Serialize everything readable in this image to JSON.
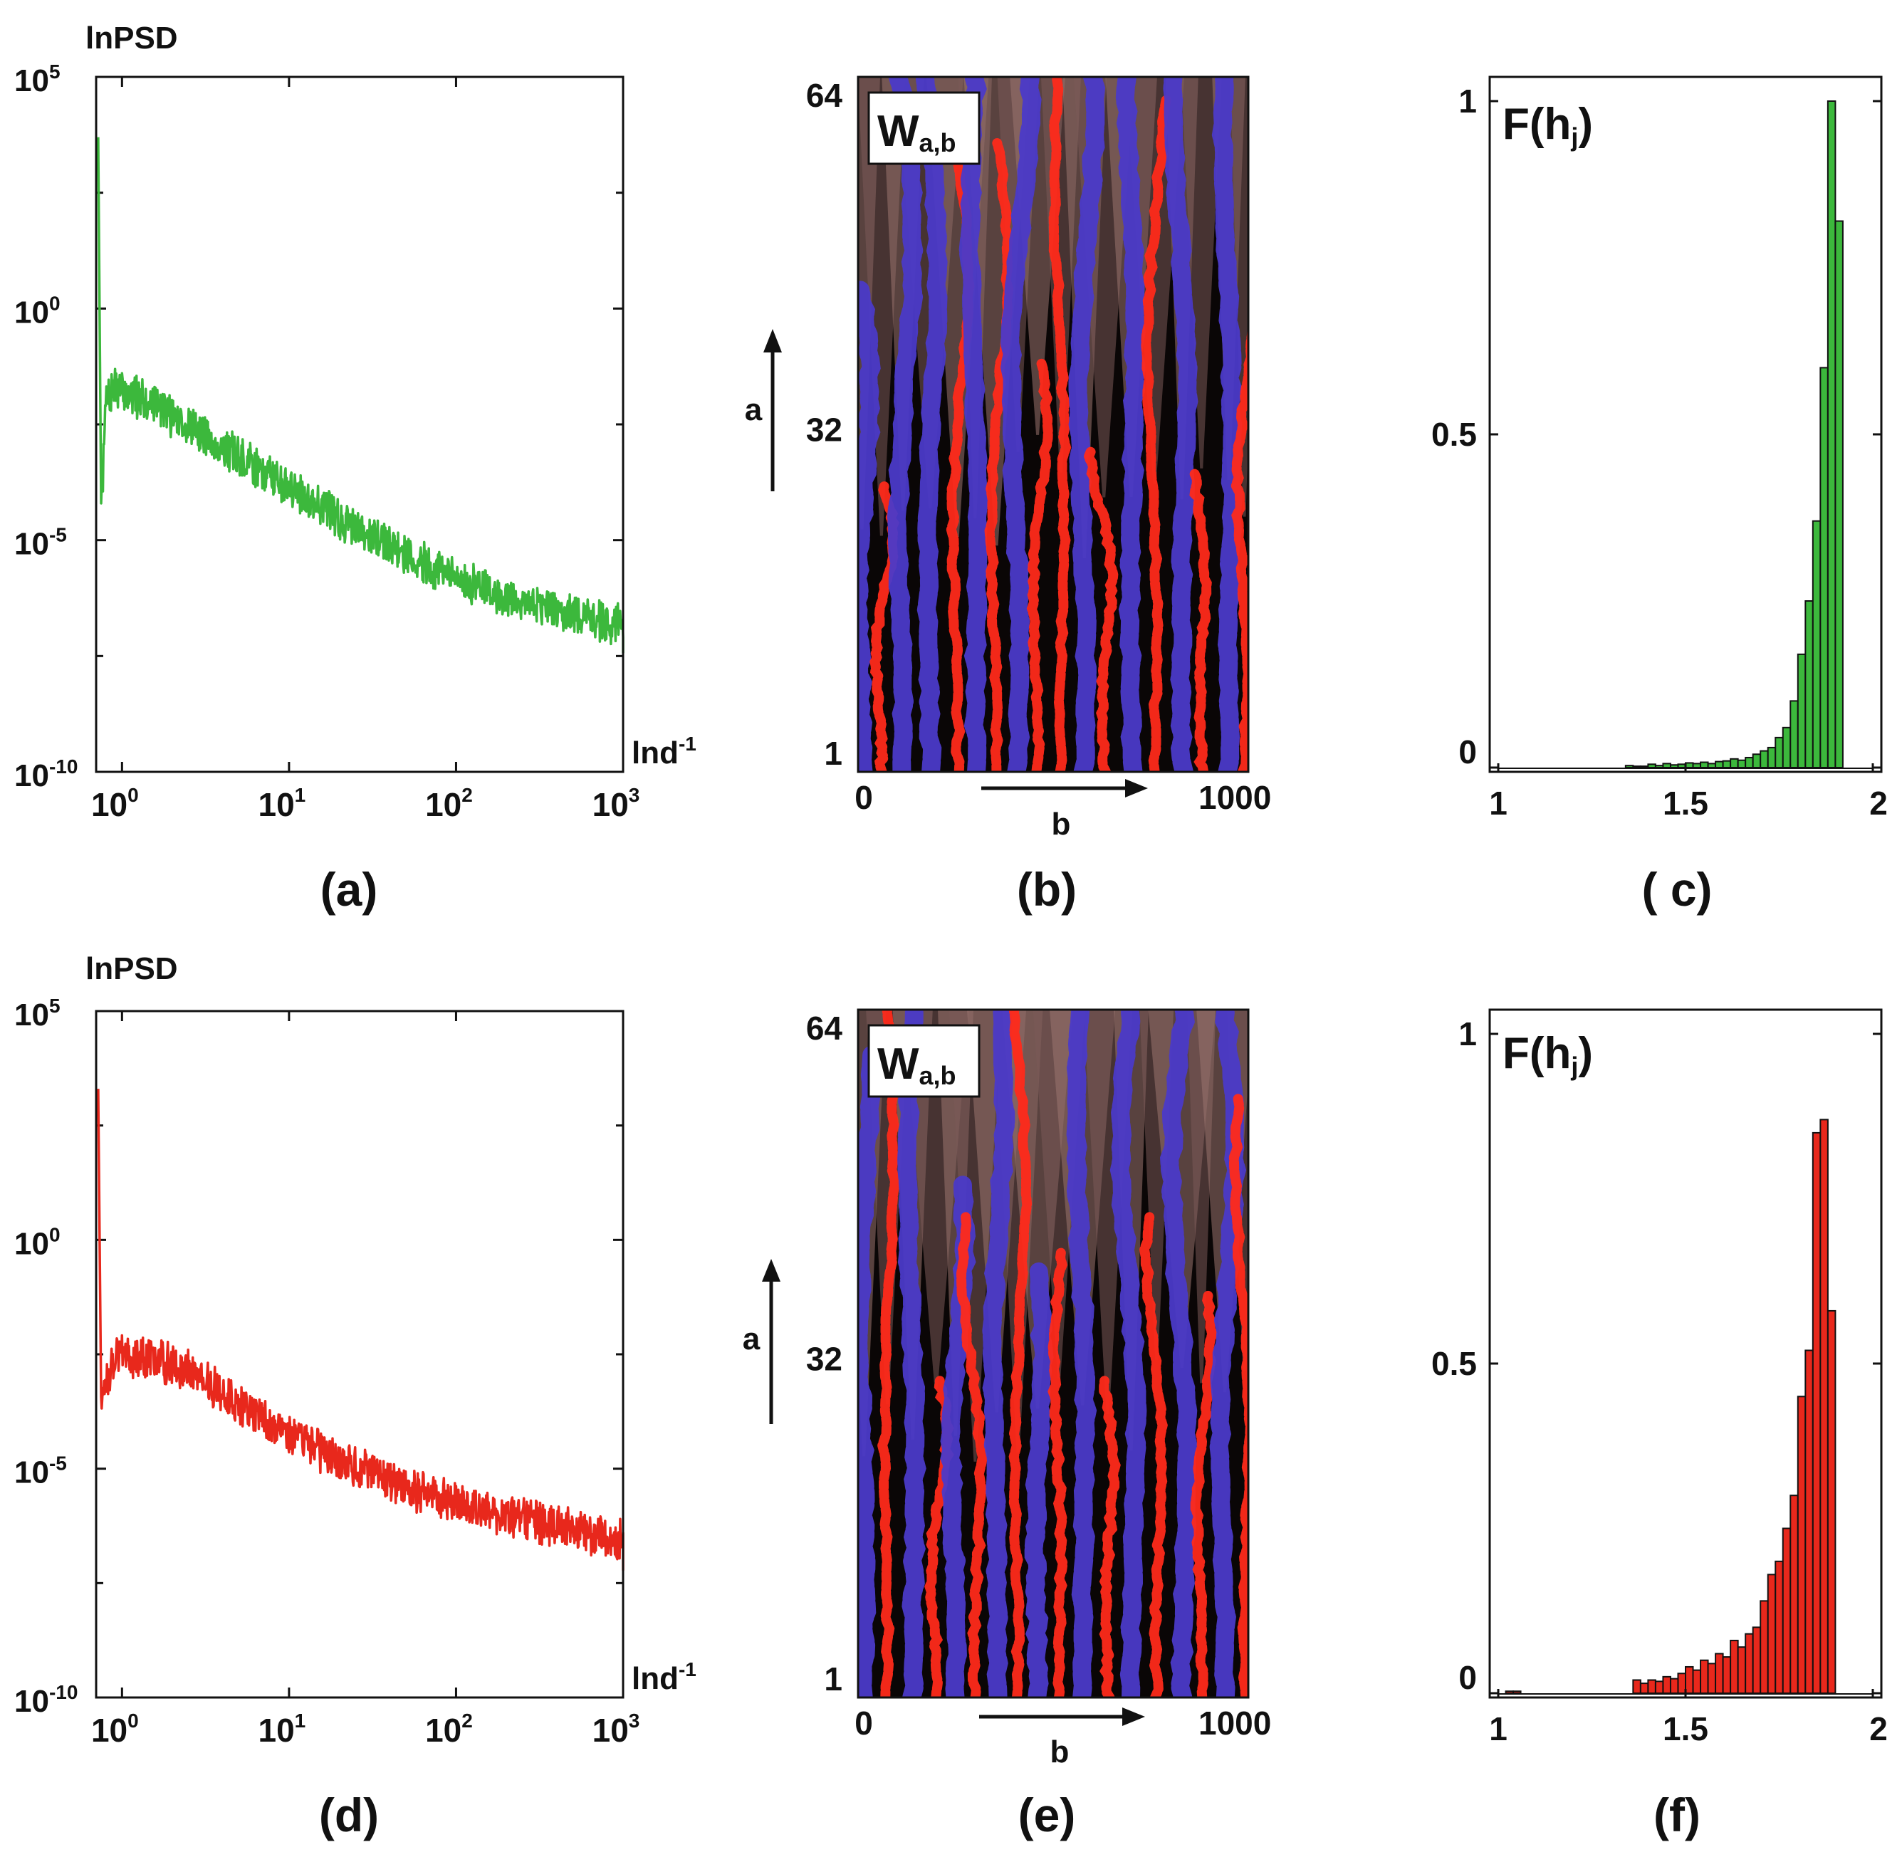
{
  "figure": {
    "panels": {
      "a": {
        "caption": "(a)",
        "title": "lnPSD",
        "xlabel": "lnd-1",
        "xlabel_main": "lnd",
        "xlabel_sup": "-1"
      },
      "b": {
        "caption": "(b)",
        "title": "W",
        "title_sub": "a,b",
        "xlabel": "b",
        "ylabel": "a"
      },
      "c": {
        "caption": "( c)",
        "title": "F(h",
        "title_sub": "j",
        "title_end": ")"
      },
      "d": {
        "caption": "(d)",
        "title": "lnPSD",
        "xlabel": "lnd-1",
        "xlabel_main": "lnd",
        "xlabel_sup": "-1"
      },
      "e": {
        "caption": "(e)",
        "title": "W",
        "title_sub": "a,b",
        "xlabel": "b",
        "ylabel": "a"
      },
      "f": {
        "caption": "(f)",
        "title": "F(h",
        "title_sub": "j",
        "title_end": ")"
      }
    },
    "colors": {
      "green": "#3cb83c",
      "red": "#e8281c",
      "blue": "#4b3ac8",
      "marker_red": "#ff2a1a"
    }
  },
  "chart_data": [
    {
      "id": "a",
      "type": "line",
      "xscale": "log",
      "yscale": "log",
      "title": "lnPSD",
      "xlabel": "lnd-1",
      "ylabel": "",
      "xlim": [
        0.7,
        1000
      ],
      "ylim": [
        1e-10,
        100000.0
      ],
      "xticks": [
        {
          "base": "10",
          "exp": "0"
        },
        {
          "base": "10",
          "exp": "1"
        },
        {
          "base": "10",
          "exp": "2"
        },
        {
          "base": "10",
          "exp": "3"
        }
      ],
      "yticks": [
        {
          "base": "10",
          "exp": "5",
          "value": 100000.0
        },
        {
          "base": "10",
          "exp": "0",
          "value": 1
        },
        {
          "base": "10",
          "exp": "-5",
          "value": 1e-05
        },
        {
          "base": "10",
          "exp": "-10",
          "value": 1e-10
        }
      ],
      "color": "#3cb83c",
      "seed": 7,
      "x": [
        0.72,
        0.75,
        0.8,
        0.9,
        1,
        1.5,
        2,
        3,
        5,
        10,
        20,
        50,
        100,
        200,
        500,
        1000
      ],
      "y": [
        5000.0,
        3e-05,
        0.01,
        0.02,
        0.015,
        0.01,
        0.005,
        0.002,
        0.0006,
        0.00015,
        3e-05,
        5e-06,
        1.5e-06,
        6e-07,
        2.5e-07,
        1.5e-07
      ]
    },
    {
      "id": "b",
      "type": "heatmap",
      "title": "Wa,b",
      "xlabel": "b",
      "ylabel": "a",
      "xlim": [
        0,
        1000
      ],
      "ylim": [
        1,
        64
      ],
      "xticks": [
        "0",
        "1000"
      ],
      "yticks": [
        "1",
        "32",
        "64"
      ],
      "markers": "wavelet modulus maxima lines (red and blue)",
      "ridges": [
        {
          "b": 10,
          "a": [
            1,
            45
          ],
          "c": "blue"
        },
        {
          "b": 60,
          "a": [
            1,
            27
          ],
          "c": "red"
        },
        {
          "b": 115,
          "a": [
            1,
            64
          ],
          "c": "blue"
        },
        {
          "b": 185,
          "a": [
            1,
            64
          ],
          "c": "blue"
        },
        {
          "b": 255,
          "a": [
            1,
            56
          ],
          "c": "red"
        },
        {
          "b": 300,
          "a": [
            1,
            64
          ],
          "c": "blue"
        },
        {
          "b": 355,
          "a": [
            1,
            58
          ],
          "c": "red"
        },
        {
          "b": 410,
          "a": [
            1,
            64
          ],
          "c": "blue"
        },
        {
          "b": 460,
          "a": [
            1,
            38
          ],
          "c": "red"
        },
        {
          "b": 520,
          "a": [
            1,
            64
          ],
          "c": "red"
        },
        {
          "b": 580,
          "a": [
            1,
            64
          ],
          "c": "blue"
        },
        {
          "b": 630,
          "a": [
            1,
            30
          ],
          "c": "red"
        },
        {
          "b": 700,
          "a": [
            1,
            64
          ],
          "c": "blue"
        },
        {
          "b": 760,
          "a": [
            1,
            62
          ],
          "c": "red"
        },
        {
          "b": 830,
          "a": [
            1,
            64
          ],
          "c": "blue"
        },
        {
          "b": 880,
          "a": [
            1,
            28
          ],
          "c": "red"
        },
        {
          "b": 950,
          "a": [
            1,
            64
          ],
          "c": "blue"
        },
        {
          "b": 990,
          "a": [
            1,
            42
          ],
          "c": "red"
        }
      ]
    },
    {
      "id": "c",
      "type": "bar",
      "title": "F(hj)",
      "xlim": [
        1,
        2
      ],
      "ylim": [
        0,
        1
      ],
      "xticks": [
        "1",
        "1.5",
        "2"
      ],
      "yticks": [
        {
          "label": "0",
          "value": 0
        },
        {
          "label": "0.5",
          "value": 0.5
        },
        {
          "label": "1",
          "value": 1
        }
      ],
      "bin_start": 1.0,
      "bin_width": 0.02,
      "values": [
        0,
        0,
        0,
        0,
        0,
        0,
        0,
        0,
        0,
        0,
        0,
        0,
        0,
        0,
        0,
        0,
        0,
        0.003,
        0.002,
        0.002,
        0.005,
        0.003,
        0.006,
        0.004,
        0.005,
        0.007,
        0.006,
        0.008,
        0.006,
        0.009,
        0.01,
        0.013,
        0.011,
        0.015,
        0.02,
        0.025,
        0.03,
        0.045,
        0.06,
        0.1,
        0.17,
        0.25,
        0.37,
        0.6,
        1.0,
        0.82,
        0.0,
        0.0,
        0.0,
        0.0
      ],
      "color": "#3cb83c"
    },
    {
      "id": "d",
      "type": "line",
      "xscale": "log",
      "yscale": "log",
      "title": "lnPSD",
      "xlabel": "lnd-1",
      "ylabel": "",
      "xlim": [
        0.7,
        1000
      ],
      "ylim": [
        1e-10,
        100000.0
      ],
      "xticks": [
        {
          "base": "10",
          "exp": "0"
        },
        {
          "base": "10",
          "exp": "1"
        },
        {
          "base": "10",
          "exp": "2"
        },
        {
          "base": "10",
          "exp": "3"
        }
      ],
      "yticks": [
        {
          "base": "10",
          "exp": "5",
          "value": 100000.0
        },
        {
          "base": "10",
          "exp": "0",
          "value": 1
        },
        {
          "base": "10",
          "exp": "-5",
          "value": 1e-05
        },
        {
          "base": "10",
          "exp": "-10",
          "value": 1e-10
        }
      ],
      "color": "#e8281c",
      "seed": 13,
      "x": [
        0.72,
        0.75,
        0.8,
        0.9,
        1,
        1.5,
        2,
        3,
        5,
        10,
        20,
        50,
        100,
        200,
        500,
        1000
      ],
      "y": [
        2000.0,
        0.0004,
        0.0008,
        0.003,
        0.003,
        0.0025,
        0.002,
        0.001,
        0.00025,
        6e-05,
        1.5e-05,
        4e-06,
        1.8e-06,
        9e-07,
        5e-07,
        2.5e-07
      ]
    },
    {
      "id": "e",
      "type": "heatmap",
      "title": "Wa,b",
      "xlabel": "b",
      "ylabel": "a",
      "xlim": [
        0,
        1000
      ],
      "ylim": [
        1,
        64
      ],
      "xticks": [
        "0",
        "1000"
      ],
      "yticks": [
        "1",
        "32",
        "64"
      ],
      "markers": "wavelet modulus maxima lines (red and blue)",
      "ridges": [
        {
          "b": 15,
          "a": [
            1,
            60
          ],
          "c": "blue"
        },
        {
          "b": 75,
          "a": [
            1,
            64
          ],
          "c": "red"
        },
        {
          "b": 140,
          "a": [
            1,
            64
          ],
          "c": "blue"
        },
        {
          "b": 200,
          "a": [
            1,
            30
          ],
          "c": "red"
        },
        {
          "b": 250,
          "a": [
            1,
            48
          ],
          "c": "blue"
        },
        {
          "b": 300,
          "a": [
            1,
            45
          ],
          "c": "red"
        },
        {
          "b": 355,
          "a": [
            1,
            64
          ],
          "c": "blue"
        },
        {
          "b": 410,
          "a": [
            1,
            64
          ],
          "c": "red"
        },
        {
          "b": 460,
          "a": [
            1,
            40
          ],
          "c": "blue"
        },
        {
          "b": 515,
          "a": [
            1,
            42
          ],
          "c": "red"
        },
        {
          "b": 575,
          "a": [
            1,
            64
          ],
          "c": "blue"
        },
        {
          "b": 640,
          "a": [
            1,
            30
          ],
          "c": "red"
        },
        {
          "b": 700,
          "a": [
            1,
            64
          ],
          "c": "blue"
        },
        {
          "b": 765,
          "a": [
            1,
            45
          ],
          "c": "red"
        },
        {
          "b": 830,
          "a": [
            1,
            64
          ],
          "c": "blue"
        },
        {
          "b": 880,
          "a": [
            1,
            38
          ],
          "c": "red"
        },
        {
          "b": 940,
          "a": [
            1,
            64
          ],
          "c": "blue"
        },
        {
          "b": 990,
          "a": [
            1,
            56
          ],
          "c": "red"
        }
      ]
    },
    {
      "id": "f",
      "type": "bar",
      "title": "F(hj)",
      "xlim": [
        1,
        2
      ],
      "ylim": [
        0,
        1
      ],
      "xticks": [
        "1",
        "1.5",
        "2"
      ],
      "yticks": [
        {
          "label": "0",
          "value": 0
        },
        {
          "label": "0.5",
          "value": 0.5
        },
        {
          "label": "1",
          "value": 1
        }
      ],
      "bin_start": 1.0,
      "bin_width": 0.02,
      "values": [
        0,
        0.003,
        0.003,
        0,
        0,
        0,
        0,
        0,
        0,
        0,
        0,
        0,
        0,
        0,
        0,
        0,
        0,
        0,
        0.02,
        0.015,
        0.02,
        0.018,
        0.025,
        0.022,
        0.03,
        0.04,
        0.035,
        0.05,
        0.045,
        0.06,
        0.055,
        0.08,
        0.07,
        0.09,
        0.1,
        0.14,
        0.18,
        0.2,
        0.25,
        0.3,
        0.45,
        0.52,
        0.85,
        0.87,
        0.58,
        0.0,
        0.0,
        0.0,
        0.0,
        0.0
      ],
      "color": "#e8281c"
    }
  ]
}
